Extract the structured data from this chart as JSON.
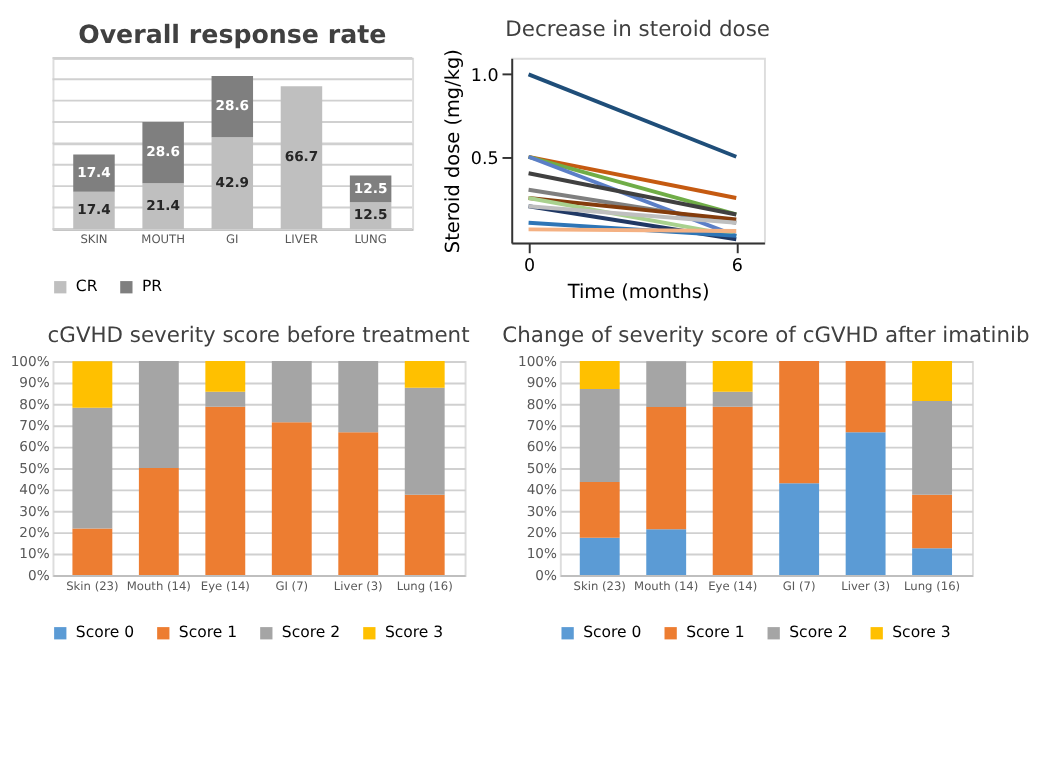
{
  "chart_data": [
    {
      "type": "bar",
      "title": "Overall response rate",
      "stacked": true,
      "categories": [
        "SKIN",
        "MOUTH",
        "GI",
        "LIVER",
        "LUNG"
      ],
      "series": [
        {
          "name": "CR",
          "color": "#bfbfbf",
          "values": [
            17.4,
            21.4,
            42.9,
            66.7,
            12.5
          ]
        },
        {
          "name": "PR",
          "color": "#7f7f7f",
          "values": [
            17.4,
            28.6,
            28.6,
            null,
            12.5
          ]
        }
      ],
      "ylim": [
        0,
        80
      ],
      "yticks": [
        {
          "value": 0,
          "label": null
        },
        {
          "value": 10,
          "label": null
        },
        {
          "value": 20,
          "label": null
        },
        {
          "value": 30,
          "label": null
        },
        {
          "value": 40,
          "label": null
        },
        {
          "value": 50,
          "label": null
        },
        {
          "value": 60,
          "label": null
        },
        {
          "value": 70,
          "label": null
        },
        {
          "value": 80,
          "label": null
        }
      ],
      "tick_labels": "x",
      "grid": "y",
      "legend": "bottom",
      "data_labels": true
    },
    {
      "type": "line",
      "title": "Decrease in steroid dose",
      "xlabel": "Time (months)",
      "ylabel": "Steroid dose (mg/kg)",
      "x": [
        0,
        6
      ],
      "series": [
        {
          "color": "#1f4e79",
          "values": [
            1.0,
            0.5
          ]
        },
        {
          "color": "#c55a11",
          "values": [
            0.5,
            0.25
          ]
        },
        {
          "color": "#70ad47",
          "values": [
            0.5,
            0.15
          ]
        },
        {
          "color": "#5b7fc7",
          "values": [
            0.5,
            0.02
          ]
        },
        {
          "color": "#404040",
          "values": [
            0.4,
            0.15
          ]
        },
        {
          "color": "#7f7f7f",
          "values": [
            0.3,
            0.1
          ]
        },
        {
          "color": "#843c0c",
          "values": [
            0.25,
            0.12
          ]
        },
        {
          "color": "#a9d18e",
          "values": [
            0.25,
            0.02
          ]
        },
        {
          "color": "#203864",
          "values": [
            0.2,
            0.0
          ]
        },
        {
          "color": "#bfbfbf",
          "values": [
            0.2,
            0.1
          ]
        },
        {
          "color": "#2e75b6",
          "values": [
            0.1,
            0.02
          ]
        },
        {
          "color": "#f4b183",
          "values": [
            0.06,
            0.05
          ]
        }
      ],
      "xlim": [
        -0.5,
        6.8
      ],
      "xticks": [
        0,
        6
      ],
      "ylim": [
        -0.02,
        1.1
      ],
      "yticks": [
        0.5,
        {
          "value": 1.0,
          "label": "1.0"
        }
      ],
      "grid": false,
      "legend": false,
      "marker": "none",
      "line_style": "solid"
    },
    {
      "type": "bar",
      "title": "cGVHD severity score before treatment",
      "stacked": true,
      "categories": [
        "Skin (23)",
        "Mouth (14)",
        "Eye (14)",
        "GI (7)",
        "Liver (3)",
        "Lung (16)"
      ],
      "series": [
        {
          "name": "Score 0",
          "color": "#5b9bd5",
          "values": [
            0,
            0,
            0,
            0,
            0,
            0
          ]
        },
        {
          "name": "Score 1",
          "color": "#ed7d31",
          "values": [
            21.7,
            50,
            78.6,
            71.4,
            66.7,
            37.5
          ]
        },
        {
          "name": "Score 2",
          "color": "#a5a5a5",
          "values": [
            56.5,
            50,
            7.1,
            28.6,
            33.3,
            50
          ]
        },
        {
          "name": "Score 3",
          "color": "#ffc000",
          "values": [
            21.7,
            0,
            14.3,
            0,
            0,
            12.5
          ]
        }
      ],
      "ylim": [
        0,
        100
      ],
      "yticks": [
        {
          "value": 0,
          "label": "0%"
        },
        {
          "value": 10,
          "label": "10%"
        },
        {
          "value": 20,
          "label": "20%"
        },
        {
          "value": 30,
          "label": "30%"
        },
        {
          "value": 40,
          "label": "40%"
        },
        {
          "value": 50,
          "label": "50%"
        },
        {
          "value": 60,
          "label": "60%"
        },
        {
          "value": 70,
          "label": "70%"
        },
        {
          "value": 80,
          "label": "80%"
        },
        {
          "value": 90,
          "label": "90%"
        },
        {
          "value": 100,
          "label": "100%"
        }
      ],
      "grid": "y",
      "legend": "bottom"
    },
    {
      "type": "bar",
      "title": "Change of severity score of cGVHD after imatinib",
      "stacked": true,
      "categories": [
        "Skin (23)",
        "Mouth (14)",
        "Eye (14)",
        "GI (7)",
        "Liver (3)",
        "Lung (16)"
      ],
      "series": [
        {
          "name": "Score 0",
          "color": "#5b9bd5",
          "values": [
            17.4,
            21.4,
            0,
            42.9,
            66.7,
            12.5
          ]
        },
        {
          "name": "Score 1",
          "color": "#ed7d31",
          "values": [
            26.1,
            57.1,
            78.6,
            57.1,
            33.3,
            25
          ]
        },
        {
          "name": "Score 2",
          "color": "#a5a5a5",
          "values": [
            43.5,
            21.4,
            7.1,
            0,
            0,
            43.8
          ]
        },
        {
          "name": "Score 3",
          "color": "#ffc000",
          "values": [
            13.0,
            0,
            14.3,
            0,
            0,
            18.8
          ]
        }
      ],
      "ylim": [
        0,
        100
      ],
      "yticks": [
        {
          "value": 0,
          "label": "0%"
        },
        {
          "value": 10,
          "label": "10%"
        },
        {
          "value": 20,
          "label": "20%"
        },
        {
          "value": 30,
          "label": "30%"
        },
        {
          "value": 40,
          "label": "40%"
        },
        {
          "value": 50,
          "label": "50%"
        },
        {
          "value": 60,
          "label": "60%"
        },
        {
          "value": 70,
          "label": "70%"
        },
        {
          "value": 80,
          "label": "80%"
        },
        {
          "value": 90,
          "label": "90%"
        },
        {
          "value": 100,
          "label": "100%"
        }
      ],
      "grid": "y",
      "legend": "bottom"
    }
  ]
}
